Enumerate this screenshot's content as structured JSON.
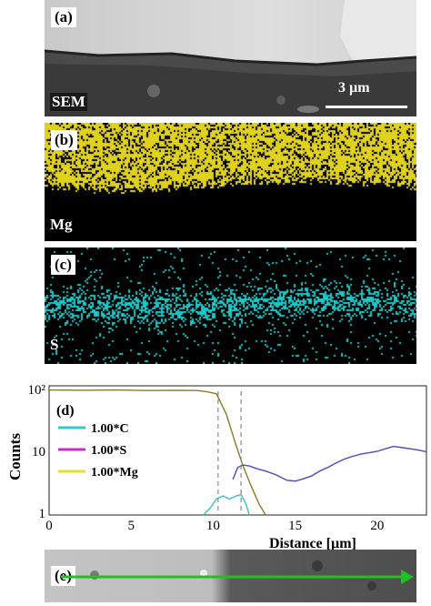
{
  "panels": {
    "a": {
      "tag": "(a)",
      "label": "SEM",
      "scale": "3 µm"
    },
    "b": {
      "tag": "(b)",
      "label": "Mg",
      "color": "#e0d21a"
    },
    "c": {
      "tag": "(c)",
      "label": "S",
      "color": "#19c7c7"
    },
    "e": {
      "tag": "(e)",
      "arrow_color": "#1ec21e"
    }
  },
  "chart_data": {
    "type": "line",
    "tag": "(d)",
    "xlabel": "Distance [µm]",
    "ylabel": "Counts",
    "xlim": [
      0,
      23
    ],
    "ylim": [
      1,
      100
    ],
    "yscale": "log",
    "x_ticks": [
      0,
      5,
      10,
      15,
      20
    ],
    "y_ticks": [
      {
        "v": 100,
        "label": "10²"
      },
      {
        "v": 10,
        "label": "10"
      },
      {
        "v": 1,
        "label": "1"
      }
    ],
    "legend": [
      {
        "label": "1.00*C",
        "color": "#39c6c6"
      },
      {
        "label": "1.00*S",
        "color": "#c62fc6"
      },
      {
        "label": "1.00*Mg",
        "color": "#e0e03a"
      }
    ],
    "series": [
      {
        "color": "#8c7a2c",
        "x": [
          0,
          2,
          4,
          6,
          8,
          9,
          9.6,
          10.2,
          10.8,
          11.3,
          11.8,
          12.3,
          12.8,
          13.2
        ],
        "y": [
          98,
          97,
          98,
          96,
          97,
          96,
          92,
          85,
          40,
          15,
          6,
          2.8,
          1.4,
          0.8
        ]
      },
      {
        "color": "#4a4ac8",
        "x": [
          11.2,
          11.5,
          11.8,
          12.2,
          12.7,
          13.2,
          13.8,
          14.5,
          15.0,
          15.5,
          16.0,
          16.5,
          17.0,
          17.5,
          18.0,
          18.5,
          19.0,
          19.5,
          20.0,
          20.5,
          21.0,
          21.5,
          22.0,
          22.5,
          23.0
        ],
        "y": [
          3.5,
          5.5,
          6.0,
          5.8,
          5.2,
          4.8,
          4.2,
          3.4,
          3.3,
          3.6,
          4.0,
          4.8,
          5.5,
          6.5,
          7.5,
          8.3,
          9.0,
          9.5,
          10.0,
          11.0,
          12.0,
          11.5,
          11.0,
          10.5,
          9.8
        ]
      },
      {
        "color": "#39c6c6",
        "x": [
          9.4,
          9.8,
          10.2,
          10.6,
          11.0,
          11.4,
          11.7,
          12.0,
          12.2
        ],
        "y": [
          0.9,
          1.2,
          1.7,
          1.9,
          1.7,
          1.9,
          2.0,
          1.4,
          0.9
        ]
      }
    ],
    "dashed_x": [
      10.3,
      11.7
    ]
  }
}
